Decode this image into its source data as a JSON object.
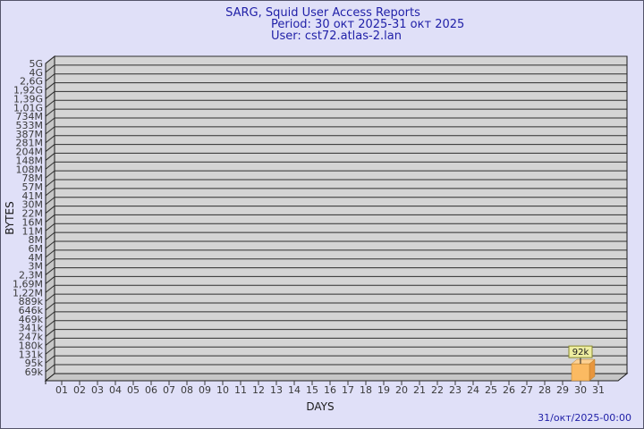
{
  "window": {
    "background_color": "#e0e0f8",
    "border_color": "#54546a"
  },
  "header": {
    "line1": "SARG, Squid User Access Reports",
    "line2": "Period: 30 окт 2025-31 окт 2025",
    "line3": "User: cst72.atlas-2.lan",
    "text_color": "#2121a8"
  },
  "footer": {
    "timestamp": "31/окт/2025-00:00"
  },
  "chart_data": {
    "type": "bar",
    "style": "3d-bar",
    "title": "SARG, Squid User Access Reports",
    "subtitle_period": "Period: 30 окт 2025-31 окт 2025",
    "subtitle_user": "User: cst72.atlas-2.lan",
    "xlabel": "DAYS",
    "ylabel": "BYTES",
    "y_scale": "log",
    "grid": true,
    "legend_position": "none",
    "y_tick_labels": [
      "5G",
      "4G",
      "2,6G",
      "1,92G",
      "1,39G",
      "1,01G",
      "734M",
      "533M",
      "387M",
      "281M",
      "204M",
      "148M",
      "108M",
      "78M",
      "57M",
      "41M",
      "30M",
      "22M",
      "16M",
      "11M",
      "8M",
      "6M",
      "4M",
      "3M",
      "2,3M",
      "1,69M",
      "1,22M",
      "889k",
      "646k",
      "469k",
      "341k",
      "247k",
      "180k",
      "131k",
      "95k",
      "69k"
    ],
    "categories": [
      "01",
      "02",
      "03",
      "04",
      "05",
      "06",
      "07",
      "08",
      "09",
      "10",
      "11",
      "12",
      "13",
      "14",
      "15",
      "16",
      "17",
      "18",
      "19",
      "20",
      "21",
      "22",
      "23",
      "24",
      "25",
      "26",
      "27",
      "28",
      "29",
      "30",
      "31"
    ],
    "values": [
      0,
      0,
      0,
      0,
      0,
      0,
      0,
      0,
      0,
      0,
      0,
      0,
      0,
      0,
      0,
      0,
      0,
      0,
      0,
      0,
      0,
      0,
      0,
      0,
      0,
      0,
      0,
      0,
      0,
      92000,
      0
    ],
    "annotations": [
      {
        "day": "30",
        "label": "92k",
        "value_bytes": 92000
      }
    ],
    "colors": {
      "plot_wall": "#d4d4d4",
      "plot_side": "#c6c6c6",
      "grid_line": "#2e2e2e",
      "axis_line": "#1a1a1a",
      "axis_text": "#3a3a3a",
      "bar_front": "#fbba62",
      "bar_side": "#e8963e",
      "bar_top": "#fdd193",
      "bar_outline": "#b97f2c",
      "label_box_fill": "#ededa0",
      "label_box_border": "#8a8a30",
      "label_text": "#1a1a1a"
    }
  }
}
